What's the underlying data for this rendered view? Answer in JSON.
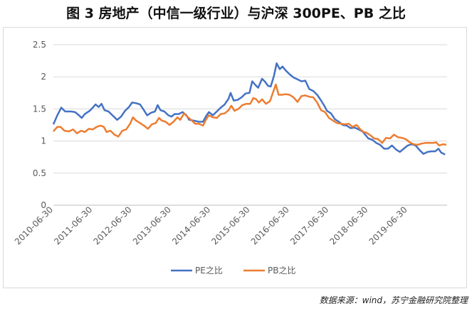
{
  "title": "图 3 房地产（中信一级行业）与沪深 300PE、PB 之比",
  "source": "数据来源：wind，苏宁金融研究院整理",
  "chart_data": {
    "type": "line",
    "ylim": [
      0,
      2.5
    ],
    "yticks": [
      "0",
      "0.5",
      "1",
      "1.5",
      "2",
      "2.5"
    ],
    "xticks": [
      "2010-06-30",
      "2011-06-30",
      "2012-06-30",
      "2013-06-30",
      "2014-06-30",
      "2015-06-30",
      "2016-06-30",
      "2017-06-30",
      "2018-06-30",
      "2019-06-30"
    ],
    "x_start": 2010.0,
    "x_end": 2020.0,
    "grid": true,
    "legend": "bottom",
    "series": [
      {
        "name": "PE之比",
        "color": "#4472C4",
        "points": [
          [
            2010.0,
            1.26
          ],
          [
            2010.1,
            1.4
          ],
          [
            2010.2,
            1.52
          ],
          [
            2010.3,
            1.46
          ],
          [
            2010.45,
            1.46
          ],
          [
            2010.55,
            1.45
          ],
          [
            2010.65,
            1.4
          ],
          [
            2010.72,
            1.36
          ],
          [
            2010.8,
            1.42
          ],
          [
            2010.92,
            1.47
          ],
          [
            2011.0,
            1.52
          ],
          [
            2011.07,
            1.57
          ],
          [
            2011.15,
            1.53
          ],
          [
            2011.22,
            1.58
          ],
          [
            2011.3,
            1.48
          ],
          [
            2011.4,
            1.46
          ],
          [
            2011.5,
            1.4
          ],
          [
            2011.62,
            1.33
          ],
          [
            2011.72,
            1.38
          ],
          [
            2011.82,
            1.47
          ],
          [
            2011.92,
            1.53
          ],
          [
            2012.0,
            1.6
          ],
          [
            2012.1,
            1.59
          ],
          [
            2012.2,
            1.57
          ],
          [
            2012.3,
            1.48
          ],
          [
            2012.38,
            1.4
          ],
          [
            2012.48,
            1.44
          ],
          [
            2012.58,
            1.46
          ],
          [
            2012.65,
            1.56
          ],
          [
            2012.72,
            1.48
          ],
          [
            2012.82,
            1.46
          ],
          [
            2012.92,
            1.4
          ],
          [
            2013.0,
            1.38
          ],
          [
            2013.08,
            1.42
          ],
          [
            2013.18,
            1.42
          ],
          [
            2013.28,
            1.45
          ],
          [
            2013.38,
            1.4
          ],
          [
            2013.45,
            1.33
          ],
          [
            2013.55,
            1.32
          ],
          [
            2013.7,
            1.3
          ],
          [
            2013.8,
            1.3
          ],
          [
            2013.88,
            1.39
          ],
          [
            2013.95,
            1.45
          ],
          [
            2014.05,
            1.4
          ],
          [
            2014.15,
            1.46
          ],
          [
            2014.25,
            1.52
          ],
          [
            2014.35,
            1.57
          ],
          [
            2014.45,
            1.66
          ],
          [
            2014.5,
            1.75
          ],
          [
            2014.58,
            1.63
          ],
          [
            2014.68,
            1.64
          ],
          [
            2014.78,
            1.68
          ],
          [
            2014.88,
            1.74
          ],
          [
            2014.98,
            1.75
          ],
          [
            2015.05,
            1.93
          ],
          [
            2015.12,
            1.88
          ],
          [
            2015.2,
            1.83
          ],
          [
            2015.3,
            1.97
          ],
          [
            2015.38,
            1.92
          ],
          [
            2015.45,
            1.86
          ],
          [
            2015.52,
            1.85
          ],
          [
            2015.6,
            2.01
          ],
          [
            2015.67,
            2.21
          ],
          [
            2015.75,
            2.12
          ],
          [
            2015.82,
            2.16
          ],
          [
            2015.9,
            2.1
          ],
          [
            2016.0,
            2.04
          ],
          [
            2016.1,
            1.99
          ],
          [
            2016.2,
            1.96
          ],
          [
            2016.3,
            1.93
          ],
          [
            2016.4,
            1.94
          ],
          [
            2016.5,
            1.81
          ],
          [
            2016.6,
            1.78
          ],
          [
            2016.7,
            1.72
          ],
          [
            2016.8,
            1.63
          ],
          [
            2016.88,
            1.55
          ],
          [
            2016.95,
            1.47
          ],
          [
            2017.05,
            1.43
          ],
          [
            2017.15,
            1.34
          ],
          [
            2017.25,
            1.3
          ],
          [
            2017.35,
            1.25
          ],
          [
            2017.45,
            1.24
          ],
          [
            2017.55,
            1.2
          ],
          [
            2017.65,
            1.21
          ],
          [
            2017.75,
            1.18
          ],
          [
            2017.85,
            1.15
          ],
          [
            2017.92,
            1.1
          ],
          [
            2018.0,
            1.04
          ],
          [
            2018.1,
            1.02
          ],
          [
            2018.2,
            0.97
          ],
          [
            2018.3,
            0.94
          ],
          [
            2018.4,
            0.88
          ],
          [
            2018.5,
            0.88
          ],
          [
            2018.6,
            0.93
          ],
          [
            2018.7,
            0.87
          ],
          [
            2018.8,
            0.83
          ],
          [
            2018.9,
            0.88
          ],
          [
            2019.0,
            0.93
          ],
          [
            2019.1,
            0.95
          ],
          [
            2019.2,
            0.93
          ],
          [
            2019.3,
            0.86
          ],
          [
            2019.4,
            0.8
          ],
          [
            2019.5,
            0.83
          ],
          [
            2019.6,
            0.84
          ],
          [
            2019.7,
            0.84
          ],
          [
            2019.78,
            0.88
          ],
          [
            2019.85,
            0.82
          ],
          [
            2019.95,
            0.79
          ]
        ]
      },
      {
        "name": "PB之比",
        "color": "#ED7D31",
        "points": [
          [
            2010.0,
            1.15
          ],
          [
            2010.1,
            1.22
          ],
          [
            2010.18,
            1.22
          ],
          [
            2010.28,
            1.16
          ],
          [
            2010.4,
            1.15
          ],
          [
            2010.5,
            1.18
          ],
          [
            2010.6,
            1.12
          ],
          [
            2010.7,
            1.16
          ],
          [
            2010.8,
            1.14
          ],
          [
            2010.9,
            1.19
          ],
          [
            2011.0,
            1.18
          ],
          [
            2011.1,
            1.22
          ],
          [
            2011.2,
            1.24
          ],
          [
            2011.28,
            1.22
          ],
          [
            2011.35,
            1.14
          ],
          [
            2011.45,
            1.16
          ],
          [
            2011.55,
            1.1
          ],
          [
            2011.65,
            1.07
          ],
          [
            2011.75,
            1.16
          ],
          [
            2011.85,
            1.18
          ],
          [
            2011.95,
            1.27
          ],
          [
            2012.02,
            1.37
          ],
          [
            2012.1,
            1.32
          ],
          [
            2012.2,
            1.28
          ],
          [
            2012.3,
            1.24
          ],
          [
            2012.4,
            1.19
          ],
          [
            2012.5,
            1.26
          ],
          [
            2012.6,
            1.28
          ],
          [
            2012.68,
            1.36
          ],
          [
            2012.75,
            1.32
          ],
          [
            2012.85,
            1.3
          ],
          [
            2012.95,
            1.25
          ],
          [
            2013.05,
            1.3
          ],
          [
            2013.15,
            1.37
          ],
          [
            2013.22,
            1.33
          ],
          [
            2013.32,
            1.43
          ],
          [
            2013.4,
            1.38
          ],
          [
            2013.5,
            1.33
          ],
          [
            2013.6,
            1.27
          ],
          [
            2013.7,
            1.27
          ],
          [
            2013.8,
            1.24
          ],
          [
            2013.88,
            1.34
          ],
          [
            2013.95,
            1.4
          ],
          [
            2014.05,
            1.37
          ],
          [
            2014.15,
            1.36
          ],
          [
            2014.25,
            1.42
          ],
          [
            2014.35,
            1.43
          ],
          [
            2014.45,
            1.48
          ],
          [
            2014.52,
            1.55
          ],
          [
            2014.6,
            1.47
          ],
          [
            2014.7,
            1.5
          ],
          [
            2014.8,
            1.56
          ],
          [
            2014.9,
            1.58
          ],
          [
            2015.0,
            1.58
          ],
          [
            2015.08,
            1.67
          ],
          [
            2015.15,
            1.65
          ],
          [
            2015.22,
            1.6
          ],
          [
            2015.3,
            1.65
          ],
          [
            2015.4,
            1.58
          ],
          [
            2015.5,
            1.62
          ],
          [
            2015.58,
            1.76
          ],
          [
            2015.65,
            1.88
          ],
          [
            2015.72,
            1.72
          ],
          [
            2015.8,
            1.72
          ],
          [
            2015.9,
            1.73
          ],
          [
            2016.0,
            1.72
          ],
          [
            2016.1,
            1.68
          ],
          [
            2016.2,
            1.61
          ],
          [
            2016.3,
            1.7
          ],
          [
            2016.4,
            1.71
          ],
          [
            2016.5,
            1.69
          ],
          [
            2016.6,
            1.68
          ],
          [
            2016.7,
            1.6
          ],
          [
            2016.8,
            1.48
          ],
          [
            2016.9,
            1.45
          ],
          [
            2017.0,
            1.36
          ],
          [
            2017.1,
            1.32
          ],
          [
            2017.2,
            1.28
          ],
          [
            2017.3,
            1.27
          ],
          [
            2017.4,
            1.26
          ],
          [
            2017.5,
            1.27
          ],
          [
            2017.6,
            1.22
          ],
          [
            2017.7,
            1.25
          ],
          [
            2017.8,
            1.18
          ],
          [
            2017.88,
            1.14
          ],
          [
            2017.95,
            1.13
          ],
          [
            2018.05,
            1.09
          ],
          [
            2018.15,
            1.04
          ],
          [
            2018.25,
            1.03
          ],
          [
            2018.35,
            0.97
          ],
          [
            2018.45,
            1.05
          ],
          [
            2018.55,
            1.04
          ],
          [
            2018.65,
            1.1
          ],
          [
            2018.75,
            1.06
          ],
          [
            2018.85,
            1.05
          ],
          [
            2018.95,
            1.03
          ],
          [
            2019.05,
            0.98
          ],
          [
            2019.15,
            0.95
          ],
          [
            2019.25,
            0.94
          ],
          [
            2019.35,
            0.96
          ],
          [
            2019.45,
            0.97
          ],
          [
            2019.55,
            0.97
          ],
          [
            2019.65,
            0.97
          ],
          [
            2019.72,
            0.98
          ],
          [
            2019.8,
            0.93
          ],
          [
            2019.9,
            0.95
          ],
          [
            2019.98,
            0.94
          ]
        ]
      }
    ]
  }
}
